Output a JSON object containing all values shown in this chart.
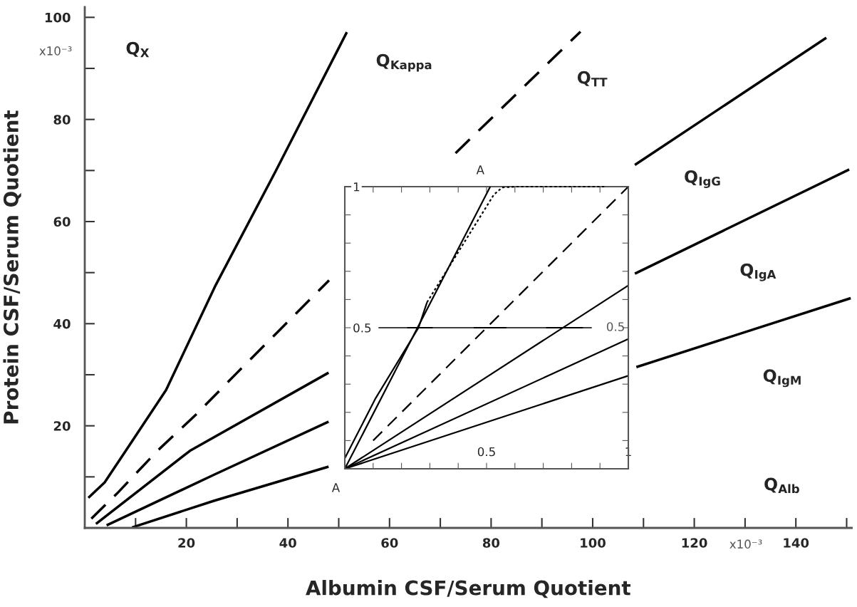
{
  "chart_data": [
    {
      "type": "line",
      "xlabel": "Albumin CSF/Serum Quotient",
      "ylabel": "Protein CSF/Serum Quotient",
      "xlim": [
        0,
        151
      ],
      "xticks": [
        {
          "value": 10,
          "label": null
        },
        20,
        {
          "value": 30,
          "label": null
        },
        40,
        {
          "value": 50,
          "label": null
        },
        60,
        {
          "value": 70,
          "label": null
        },
        80,
        {
          "value": 90,
          "label": null
        },
        100,
        {
          "value": 110,
          "label": null
        },
        120,
        {
          "value": 130,
          "label": null
        },
        140,
        {
          "value": 150,
          "label": null
        }
      ],
      "ylim": [
        0,
        102
      ],
      "yticks": [
        {
          "value": 10,
          "label": null
        },
        20,
        {
          "value": 30,
          "label": null
        },
        40,
        {
          "value": 50,
          "label": null
        },
        60,
        {
          "value": 70,
          "label": null
        },
        80,
        {
          "value": 90,
          "label": null
        },
        100
      ],
      "annotations": [
        "Q$_{X}$",
        "Q$_{Alb}$",
        "x10⁻³",
        "x10⁻³"
      ],
      "series": [
        {
          "name": "Q$_{Kappa}$",
          "color": "#000000",
          "line_style": "solid",
          "x": [
            0.7,
            3.9,
            8.6,
            16,
            25.8,
            37.6,
            51.6
          ],
          "values": [
            5.9,
            8.9,
            15.9,
            27,
            47.6,
            69.9,
            97.1
          ]
        },
        {
          "name": "Q$_{TT}$",
          "color": "#000000",
          "line_style": "dashed",
          "x": [
            1.3,
            6.7,
            14.2,
            22.1,
            30,
            38.4,
            48.1,
            60,
            73,
            97.6
          ],
          "values": [
            1.8,
            7.1,
            15,
            22.4,
            30.4,
            38.8,
            48.5,
            null,
            73.4,
            97.2
          ]
        },
        {
          "name": "Q$_{IgG}$",
          "color": "#000000",
          "line_style": "solid",
          "x": [
            2.2,
            20.7,
            48,
            78,
            108.3,
            146
          ],
          "values": [
            0.8,
            15.1,
            30.4,
            null,
            71.1,
            96
          ]
        },
        {
          "name": "Q$_{IgA}$",
          "color": "#000000",
          "line_style": "solid",
          "x": [
            4.3,
            25.4,
            48,
            78,
            108.3,
            150.5
          ],
          "values": [
            0.5,
            10.4,
            20.8,
            null,
            49.8,
            70.2
          ]
        },
        {
          "name": "Q$_{IgM}$",
          "color": "#000000",
          "line_style": "solid",
          "x": [
            9.3,
            25.4,
            48,
            78,
            108.6,
            150.8
          ],
          "values": [
            0.1,
            5.3,
            12,
            null,
            31.5,
            45
          ]
        }
      ]
    },
    {
      "type": "line",
      "xlim": [
        0,
        1
      ],
      "xticks": [
        {
          "value": 0.1,
          "label": null
        },
        {
          "value": 0.2,
          "label": null
        },
        {
          "value": 0.3,
          "label": null
        },
        {
          "value": 0.4,
          "label": null
        },
        0.5,
        {
          "value": 0.6,
          "label": null
        },
        {
          "value": 0.7,
          "label": null
        },
        {
          "value": 0.8,
          "label": null
        },
        {
          "value": 0.9,
          "label": null
        },
        1
      ],
      "ylim": [
        0,
        1
      ],
      "yticks": [
        {
          "value": 0.1,
          "label": null
        },
        {
          "value": 0.2,
          "label": null
        },
        {
          "value": 0.3,
          "label": null
        },
        {
          "value": 0.4,
          "label": null
        },
        0.5,
        {
          "value": 0.6,
          "label": null
        },
        {
          "value": 0.7,
          "label": null
        },
        {
          "value": 0.8,
          "label": null
        },
        {
          "value": 0.9,
          "label": null
        },
        1
      ],
      "ref_lines": [
        {
          "axis": "y",
          "value": 0.5,
          "color": "#000000"
        }
      ],
      "annotations": [
        {
          "text": "A",
          "x": 0,
          "y": 0
        },
        {
          "text": "A",
          "x": 0.513,
          "y": 1
        },
        "0.5"
      ],
      "series": [
        {
          "color": "#000000",
          "line_style": "solid",
          "x": [
            0,
            0.107,
            0.26,
            0.29
          ],
          "values": [
            0.037,
            0.247,
            0.5,
            0.59
          ]
        },
        {
          "color": "#000000",
          "line_style": "dotted",
          "x": [
            0.29,
            0.526,
            0.555,
            0.6,
            0.92
          ],
          "values": [
            0.59,
            0.972,
            0.997,
            1,
            1
          ]
        },
        {
          "color": "#000000",
          "line_style": "solid",
          "x": [
            0,
            0.513
          ],
          "values": [
            0,
            1
          ]
        },
        {
          "color": "#000000",
          "line_style": "dashed",
          "x": [
            0.1,
            1
          ],
          "values": [
            0.1,
            1
          ]
        },
        {
          "color": "#000000",
          "line_style": "solid",
          "x": [
            0,
            1
          ],
          "values": [
            0,
            0.65
          ]
        },
        {
          "color": "#000000",
          "line_style": "solid",
          "x": [
            0,
            1
          ],
          "values": [
            0,
            0.46
          ]
        },
        {
          "color": "#000000",
          "line_style": "solid",
          "x": [
            0,
            1
          ],
          "values": [
            0,
            0.33
          ]
        },
        {
          "color": "#000000",
          "line_style": "solid",
          "x": [
            0.22,
            0.31,
            0.38,
            0.455,
            0.57,
            0.64,
            0.71,
            0.84
          ],
          "values": [
            0.5,
            0.5,
            null,
            0.5,
            0.5,
            null,
            0.5,
            0.5
          ]
        }
      ]
    }
  ]
}
